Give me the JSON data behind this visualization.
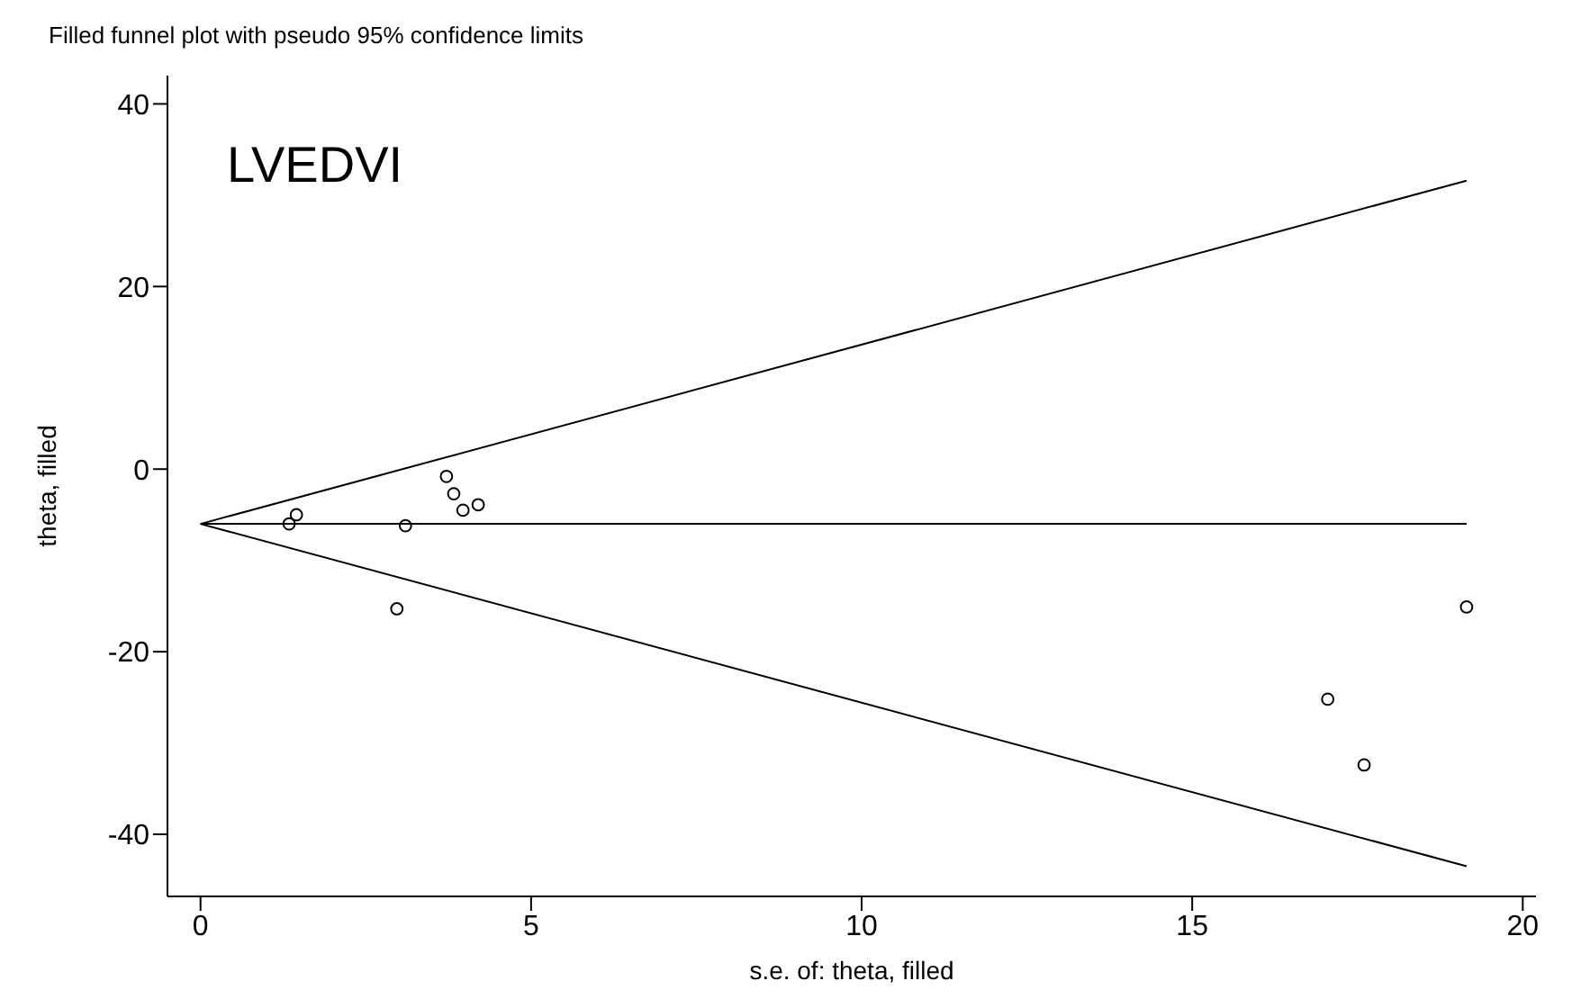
{
  "chart_data": {
    "type": "scatter",
    "title": "Filled funnel plot with pseudo 95% confidence limits",
    "xlabel": "s.e. of: theta, filled",
    "ylabel": "theta, filled",
    "annotations": [
      "LVEDVI"
    ],
    "xlim": [
      -0.5,
      20.2
    ],
    "xticks": [
      0,
      5,
      10,
      15,
      20
    ],
    "ylim": [
      -46.8,
      43.1
    ],
    "yticks": [
      -40,
      -20,
      0,
      20,
      40
    ],
    "grid": false,
    "legend": false,
    "series": [
      {
        "marker": "circle",
        "color": "#000000",
        "x": [
          1.34,
          1.45,
          3.1,
          2.97,
          3.72,
          3.83,
          3.97,
          4.2,
          17.05,
          17.6,
          19.15
        ],
        "values": [
          -6.0,
          -5.0,
          -6.2,
          -15.3,
          -0.8,
          -2.7,
          -4.5,
          -3.9,
          -25.2,
          -32.4,
          -15.1
        ]
      },
      {
        "type": "line",
        "marker": "none",
        "color": "#000000",
        "x": [
          0,
          19.15
        ],
        "values": [
          -6.0,
          31.6
        ]
      },
      {
        "type": "line",
        "marker": "none",
        "color": "#000000",
        "x": [
          0,
          19.15
        ],
        "values": [
          -6.0,
          -6.0
        ]
      },
      {
        "type": "line",
        "marker": "none",
        "color": "#000000",
        "x": [
          0,
          19.15
        ],
        "values": [
          -6.0,
          -43.5
        ]
      }
    ]
  }
}
